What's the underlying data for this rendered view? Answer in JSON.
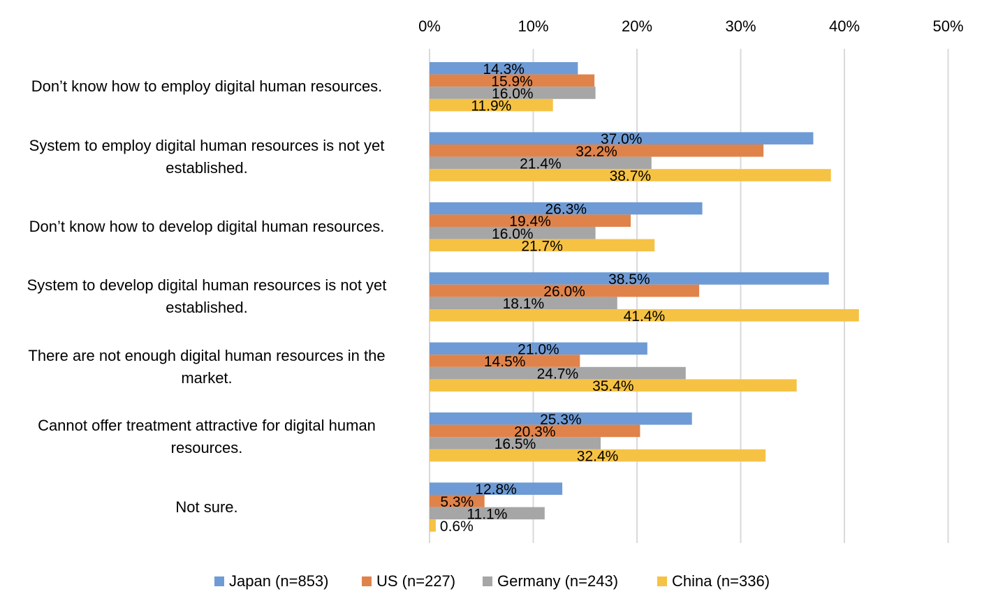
{
  "chart_data": {
    "type": "bar",
    "orientation": "horizontal",
    "categories": [
      "Don’t know how to employ digital human resources.",
      "System to employ digital human resources is not yet established.",
      "Don’t know how to develop digital human resources.",
      "System to develop digital human resources is not yet established.",
      "There are not enough digital human resources in the market.",
      "Cannot offer treatment attractive for digital human resources.",
      "Not sure."
    ],
    "category_lines": [
      [
        "Don’t know how to employ digital human resources."
      ],
      [
        "System to employ digital human resources is not yet",
        "established."
      ],
      [
        "Don’t know how to develop digital human resources."
      ],
      [
        "System to develop digital human resources is not yet",
        "established."
      ],
      [
        "There are not enough digital human resources in the",
        "market."
      ],
      [
        "Cannot offer treatment attractive for digital human",
        "resources."
      ],
      [
        "Not sure."
      ]
    ],
    "series": [
      {
        "name": "Japan (n=853)",
        "color": "#6e9bd5",
        "values": [
          14.3,
          37.0,
          26.3,
          38.5,
          21.0,
          25.3,
          12.8
        ]
      },
      {
        "name": "US (n=227)",
        "color": "#e0834a",
        "values": [
          15.9,
          32.2,
          19.4,
          26.0,
          14.5,
          20.3,
          5.3
        ]
      },
      {
        "name": "Germany (n=243)",
        "color": "#a6a6a6",
        "values": [
          16.0,
          21.4,
          16.0,
          18.1,
          24.7,
          16.5,
          11.1
        ]
      },
      {
        "name": "China (n=336)",
        "color": "#f6c244",
        "values": [
          11.9,
          38.7,
          21.7,
          41.4,
          35.4,
          32.4,
          0.6
        ]
      }
    ],
    "x_ticks": [
      "0%",
      "10%",
      "20%",
      "30%",
      "40%",
      "50%"
    ],
    "xlim": [
      0,
      50
    ],
    "value_format": "percent_1dp",
    "grid": true,
    "axis_position": "top",
    "legend_position": "bottom",
    "gridline_color": "#d9d9d9"
  }
}
